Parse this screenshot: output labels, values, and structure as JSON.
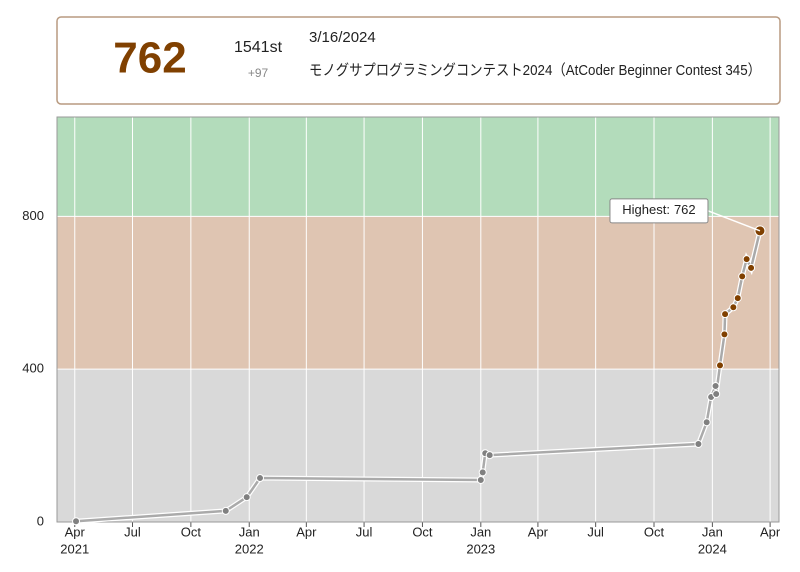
{
  "header": {
    "rating": "762",
    "rank": "1541st",
    "diff": "+97",
    "date": "3/16/2024",
    "contest": "モノグサプログラミングコンテスト2024（AtCoder Beginner Contest 345）"
  },
  "chart_data": {
    "type": "line",
    "x": [
      "2021-04-03",
      "2021-11-25",
      "2021-12-28",
      "2022-01-18",
      "2023-01-01",
      "2023-01-04",
      "2023-01-08",
      "2023-01-15",
      "2023-12-10",
      "2023-12-23",
      "2023-12-30",
      "2024-01-06",
      "2024-01-07",
      "2024-01-13",
      "2024-01-20",
      "2024-01-21",
      "2024-02-03",
      "2024-02-10",
      "2024-02-17",
      "2024-02-24",
      "2024-03-02",
      "2024-03-16"
    ],
    "values": [
      2,
      29,
      65,
      115,
      110,
      130,
      180,
      175,
      204,
      261,
      327,
      356,
      335,
      410,
      491,
      544,
      562,
      586,
      643,
      688,
      665,
      762
    ],
    "xlim": [
      "2021-03-04",
      "2024-04-15"
    ],
    "xticks": [
      {
        "value": "2021-04-01",
        "label": "Apr",
        "year": "2021"
      },
      {
        "value": "2021-07-01",
        "label": "Jul"
      },
      {
        "value": "2021-10-01",
        "label": "Oct"
      },
      {
        "value": "2022-01-01",
        "label": "Jan",
        "year": "2022"
      },
      {
        "value": "2022-04-01",
        "label": "Apr"
      },
      {
        "value": "2022-07-01",
        "label": "Jul"
      },
      {
        "value": "2022-10-01",
        "label": "Oct"
      },
      {
        "value": "2023-01-01",
        "label": "Jan",
        "year": "2023"
      },
      {
        "value": "2023-04-01",
        "label": "Apr"
      },
      {
        "value": "2023-07-01",
        "label": "Jul"
      },
      {
        "value": "2023-10-01",
        "label": "Oct"
      },
      {
        "value": "2024-01-01",
        "label": "Jan",
        "year": "2024"
      },
      {
        "value": "2024-04-01",
        "label": "Apr"
      }
    ],
    "ylim": [
      0,
      1060
    ],
    "yticks": [
      0,
      400,
      800
    ],
    "grid": true,
    "bands": [
      {
        "from": 0,
        "to": 400,
        "color": "#d9d9d9",
        "dot_color": "#808080"
      },
      {
        "from": 400,
        "to": 800,
        "color": "#dfc5b2",
        "dot_color": "#804000"
      },
      {
        "from": 800,
        "to": 1060,
        "color": "#b3dcbb",
        "dot_color": "#008000"
      }
    ],
    "highest": {
      "label": "Highest:",
      "value": 762
    }
  }
}
